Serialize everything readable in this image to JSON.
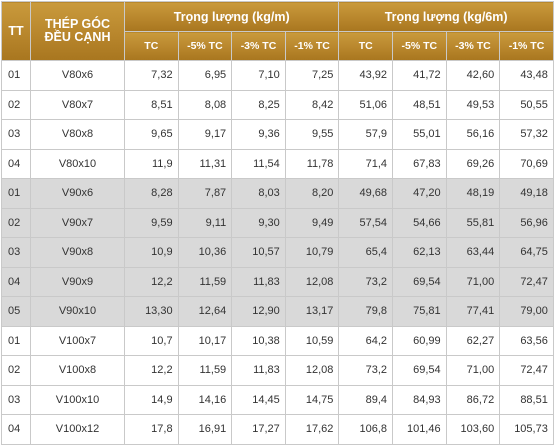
{
  "header": {
    "tt": "TT",
    "name_line1": "THÉP GÓC",
    "name_line2": "ĐỀU CẠNH",
    "group1": "Trọng lượng (kg/m)",
    "group2": "Trọng lượng (kg/6m)",
    "sub": [
      "TC",
      "-5% TC",
      "-3% TC",
      "-1% TC",
      "TC",
      "-5% TC",
      "-3% TC",
      "-1% TC"
    ]
  },
  "colors": {
    "header_gold": "#b8862c",
    "shaded_row": "#d9d9d9"
  },
  "rows": [
    {
      "tt": "01",
      "name": "V80x6",
      "v": [
        "7,32",
        "6,95",
        "7,10",
        "7,25",
        "43,92",
        "41,72",
        "42,60",
        "43,48"
      ],
      "shaded": false
    },
    {
      "tt": "02",
      "name": "V80x7",
      "v": [
        "8,51",
        "8,08",
        "8,25",
        "8,42",
        "51,06",
        "48,51",
        "49,53",
        "50,55"
      ],
      "shaded": false
    },
    {
      "tt": "03",
      "name": "V80x8",
      "v": [
        "9,65",
        "9,17",
        "9,36",
        "9,55",
        "57,9",
        "55,01",
        "56,16",
        "57,32"
      ],
      "shaded": false
    },
    {
      "tt": "04",
      "name": "V80x10",
      "v": [
        "11,9",
        "11,31",
        "11,54",
        "11,78",
        "71,4",
        "67,83",
        "69,26",
        "70,69"
      ],
      "shaded": false
    },
    {
      "tt": "01",
      "name": "V90x6",
      "v": [
        "8,28",
        "7,87",
        "8,03",
        "8,20",
        "49,68",
        "47,20",
        "48,19",
        "49,18"
      ],
      "shaded": true
    },
    {
      "tt": "02",
      "name": "V90x7",
      "v": [
        "9,59",
        "9,11",
        "9,30",
        "9,49",
        "57,54",
        "54,66",
        "55,81",
        "56,96"
      ],
      "shaded": true
    },
    {
      "tt": "03",
      "name": "V90x8",
      "v": [
        "10,9",
        "10,36",
        "10,57",
        "10,79",
        "65,4",
        "62,13",
        "63,44",
        "64,75"
      ],
      "shaded": true
    },
    {
      "tt": "04",
      "name": "V90x9",
      "v": [
        "12,2",
        "11,59",
        "11,83",
        "12,08",
        "73,2",
        "69,54",
        "71,00",
        "72,47"
      ],
      "shaded": true
    },
    {
      "tt": "05",
      "name": "V90x10",
      "v": [
        "13,30",
        "12,64",
        "12,90",
        "13,17",
        "79,8",
        "75,81",
        "77,41",
        "79,00"
      ],
      "shaded": true
    },
    {
      "tt": "01",
      "name": "V100x7",
      "v": [
        "10,7",
        "10,17",
        "10,38",
        "10,59",
        "64,2",
        "60,99",
        "62,27",
        "63,56"
      ],
      "shaded": false
    },
    {
      "tt": "02",
      "name": "V100x8",
      "v": [
        "12,2",
        "11,59",
        "11,83",
        "12,08",
        "73,2",
        "69,54",
        "71,00",
        "72,47"
      ],
      "shaded": false
    },
    {
      "tt": "03",
      "name": "V100x10",
      "v": [
        "14,9",
        "14,16",
        "14,45",
        "14,75",
        "89,4",
        "84,93",
        "86,72",
        "88,51"
      ],
      "shaded": false
    },
    {
      "tt": "04",
      "name": "V100x12",
      "v": [
        "17,8",
        "16,91",
        "17,27",
        "17,62",
        "106,8",
        "101,46",
        "103,60",
        "105,73"
      ],
      "shaded": false
    }
  ]
}
